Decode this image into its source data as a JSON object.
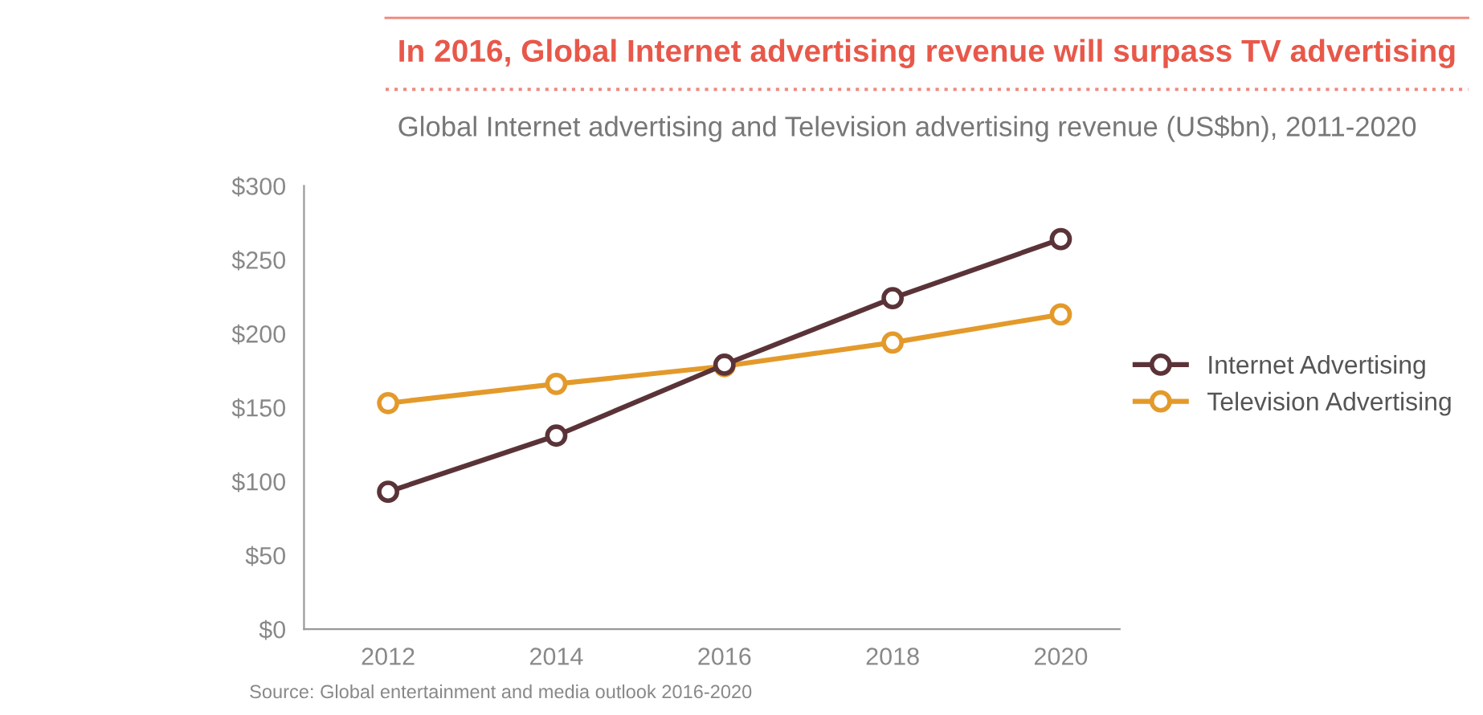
{
  "chart_data": {
    "type": "line",
    "title": "In 2016, Global Internet advertising revenue will surpass TV advertising",
    "subtitle": "Global Internet advertising and Television advertising revenue (US$bn), 2011-2020",
    "x": [
      2012,
      2014,
      2016,
      2018,
      2020
    ],
    "series": [
      {
        "name": "Internet Advertising",
        "color": "#5a3338",
        "values": [
          93,
          131,
          179,
          224,
          264
        ]
      },
      {
        "name": "Television Advertising",
        "color": "#e39a2b",
        "values": [
          153,
          166,
          178,
          194,
          213
        ]
      }
    ],
    "xlim": [
      2011,
      2020.7
    ],
    "xticks": [
      2012,
      2014,
      2016,
      2018,
      2020
    ],
    "ylim": [
      0,
      300
    ],
    "yticks": [
      {
        "value": 0,
        "label": "$0"
      },
      {
        "value": 50,
        "label": "$50"
      },
      {
        "value": 100,
        "label": "$100"
      },
      {
        "value": 150,
        "label": "$150"
      },
      {
        "value": 200,
        "label": "$200"
      },
      {
        "value": 250,
        "label": "$250"
      },
      {
        "value": 300,
        "label": "$300"
      }
    ],
    "grid": false,
    "legend": "right",
    "marker": "circle",
    "line_style": "solid",
    "annotations": [
      "Source: Global entertainment and media outlook 2016-2020"
    ]
  }
}
